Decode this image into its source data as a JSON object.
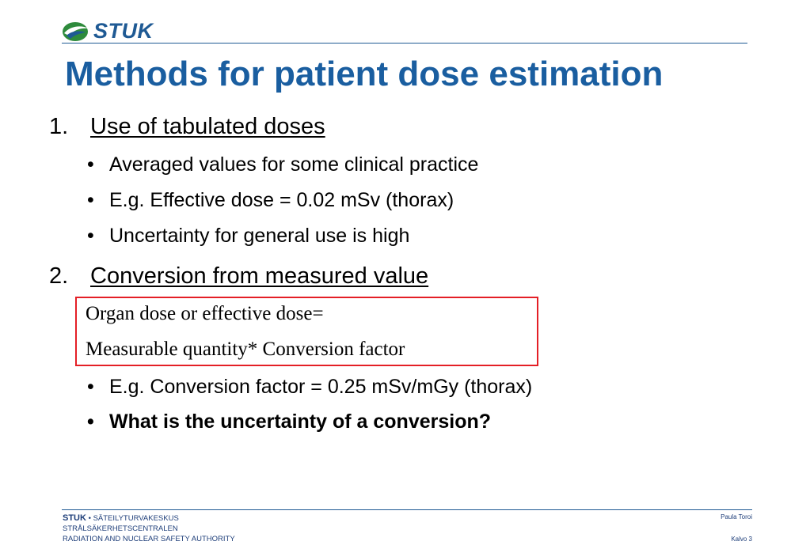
{
  "logo": {
    "text": "STUK",
    "colors": {
      "green": "#2e8b3c",
      "blue": "#1f5a94"
    }
  },
  "title": "Methods for patient dose estimation",
  "sections": [
    {
      "number": "1.",
      "heading": "Use of tabulated doses",
      "bullets": [
        "Averaged values for some clinical practice",
        "E.g. Effective dose = 0.02 mSv (thorax)",
        "Uncertainty for general use is high"
      ]
    },
    {
      "number": "2.",
      "heading": "Conversion from measured value",
      "formula": [
        "Organ dose or effective dose=",
        "Measurable quantity* Conversion factor"
      ],
      "bullets": [
        "E.g. Conversion factor = 0.25 mSv/mGy (thorax)",
        "What is the uncertainty of a conversion?"
      ]
    }
  ],
  "bullet_char": "•",
  "footer": {
    "brand": "STUK",
    "separator": " • ",
    "line1": "SÄTEILYTURVAKESKUS",
    "line2": "STRÅLSÄKERHETSCENTRALEN",
    "line3": "RADIATION AND NUCLEAR SAFETY AUTHORITY",
    "author": "Paula Toroi",
    "slide": "Kalvo 3"
  },
  "colors": {
    "title": "#1a5ea0",
    "formula_border": "#e41f26",
    "rule": "#1f5a94"
  }
}
